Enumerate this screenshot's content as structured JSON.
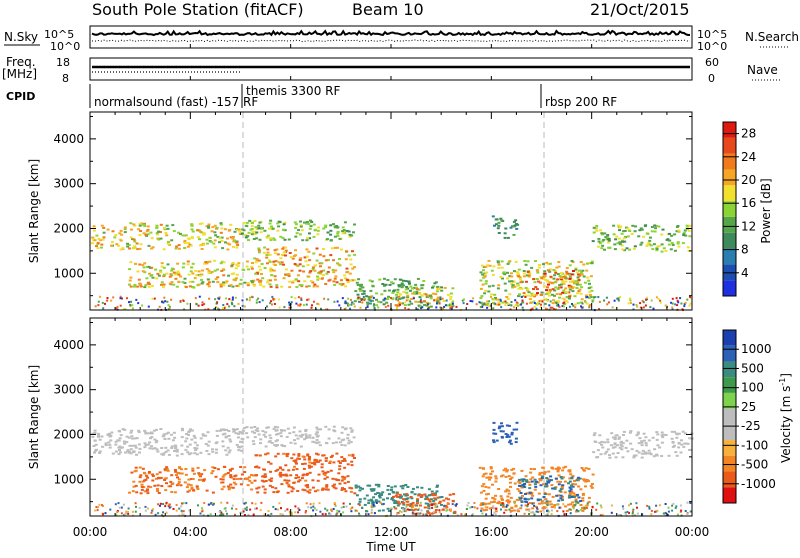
{
  "header": {
    "station": "South Pole Station (fitACF)",
    "beam": "Beam 10",
    "date": "21/Oct/2015"
  },
  "top_panels": {
    "nsky_label": "N.Sky",
    "nsearch_label": "N.Search",
    "freq_label": "Freq.",
    "freq_unit": "[MHz]",
    "nave_label": "Nave",
    "cpid_label": "CPID",
    "noise_ticks": [
      "10^5",
      "10^0"
    ],
    "freq_ticks": [
      "18",
      "8"
    ],
    "nave_ticks": [
      "60",
      "0"
    ]
  },
  "cpid_segments": [
    {
      "label": "normalsound (fast) -157 RF",
      "start_hour": 0.0
    },
    {
      "label": "themis 3300 RF",
      "start_hour": 6.1
    },
    {
      "label": "rbsp 200 RF",
      "start_hour": 18.1
    }
  ],
  "colors": {
    "power_scale": [
      "#1f30e0",
      "#1b4eb0",
      "#2a7fb0",
      "#3f8a5a",
      "#55a54a",
      "#8cd436",
      "#f2e02e",
      "#f6a623",
      "#f07a1c",
      "#e8491a",
      "#e01a10"
    ],
    "velocity_scale": [
      "#1c3fb0",
      "#2c62b6",
      "#3a8c80",
      "#3e9a4a",
      "#7ed24d",
      "#bdbdbd",
      "#bdbdbd",
      "#f7b03a",
      "#f48524",
      "#ec5a1a",
      "#e01010"
    ]
  },
  "chart_data": [
    {
      "type": "heatmap",
      "title": "Power",
      "xlabel": "Time UT",
      "ylabel": "Slant Range [km]",
      "x_ticks": [
        "00:00",
        "04:00",
        "08:00",
        "12:00",
        "16:00",
        "20:00",
        "00:00"
      ],
      "x_range_hours": [
        0,
        24
      ],
      "y_ticks": [
        1000,
        2000,
        3000,
        4000
      ],
      "ylim": [
        180,
        4600
      ],
      "colorbar_label": "Power [dB]",
      "colorbar_ticks": [
        4,
        8,
        12,
        16,
        20,
        24,
        28
      ],
      "colorbar_range": [
        0,
        30
      ],
      "vertical_markers_hours": [
        6.1,
        18.1
      ],
      "regions": [
        {
          "t": [
            0.0,
            6.0
          ],
          "range": [
            1550,
            2150
          ],
          "value": 18
        },
        {
          "t": [
            1.5,
            6.5
          ],
          "range": [
            700,
            1300
          ],
          "value": 18
        },
        {
          "t": [
            6.0,
            10.5
          ],
          "range": [
            1750,
            2200
          ],
          "value": 14
        },
        {
          "t": [
            6.5,
            10.5
          ],
          "range": [
            700,
            1600
          ],
          "value": 20
        },
        {
          "t": [
            10.5,
            14.0
          ],
          "range": [
            300,
            900
          ],
          "value": 12
        },
        {
          "t": [
            12.0,
            14.5
          ],
          "range": [
            250,
            700
          ],
          "value": 18
        },
        {
          "t": [
            15.5,
            20.0
          ],
          "range": [
            300,
            1300
          ],
          "value": 16
        },
        {
          "t": [
            17.0,
            19.5
          ],
          "range": [
            500,
            1100
          ],
          "value": 22
        },
        {
          "t": [
            20.0,
            24.0
          ],
          "range": [
            1500,
            2100
          ],
          "value": 14
        },
        {
          "t": [
            16.0,
            17.0
          ],
          "range": [
            1800,
            2300
          ],
          "value": 10
        }
      ]
    },
    {
      "type": "heatmap",
      "title": "Velocity",
      "xlabel": "Time UT",
      "ylabel": "Slant Range [km]",
      "x_ticks": [
        "00:00",
        "04:00",
        "08:00",
        "12:00",
        "16:00",
        "20:00",
        "00:00"
      ],
      "x_range_hours": [
        0,
        24
      ],
      "y_ticks": [
        1000,
        2000,
        3000,
        4000
      ],
      "ylim": [
        180,
        4600
      ],
      "colorbar_label": "Velocity [m s^-1]",
      "colorbar_ticks": [
        "1000",
        "500",
        "100",
        "25",
        "-25",
        "-100",
        "-500",
        "-1000"
      ],
      "vertical_markers_hours": [
        6.1,
        18.1
      ],
      "regions": [
        {
          "t": [
            0.0,
            6.0
          ],
          "range": [
            1550,
            2150
          ],
          "value": 0
        },
        {
          "t": [
            1.5,
            6.5
          ],
          "range": [
            700,
            1300
          ],
          "value": -300
        },
        {
          "t": [
            6.0,
            10.5
          ],
          "range": [
            1750,
            2200
          ],
          "value": 0
        },
        {
          "t": [
            6.5,
            10.5
          ],
          "range": [
            700,
            1600
          ],
          "value": -400
        },
        {
          "t": [
            10.5,
            14.0
          ],
          "range": [
            300,
            900
          ],
          "value": 150
        },
        {
          "t": [
            12.0,
            14.5
          ],
          "range": [
            250,
            700
          ],
          "value": -500
        },
        {
          "t": [
            15.5,
            20.0
          ],
          "range": [
            300,
            1300
          ],
          "value": -200
        },
        {
          "t": [
            17.0,
            19.5
          ],
          "range": [
            500,
            1100
          ],
          "value": 300
        },
        {
          "t": [
            20.0,
            24.0
          ],
          "range": [
            1500,
            2100
          ],
          "value": 0
        },
        {
          "t": [
            16.0,
            17.0
          ],
          "range": [
            1800,
            2300
          ],
          "value": 600
        }
      ]
    }
  ]
}
